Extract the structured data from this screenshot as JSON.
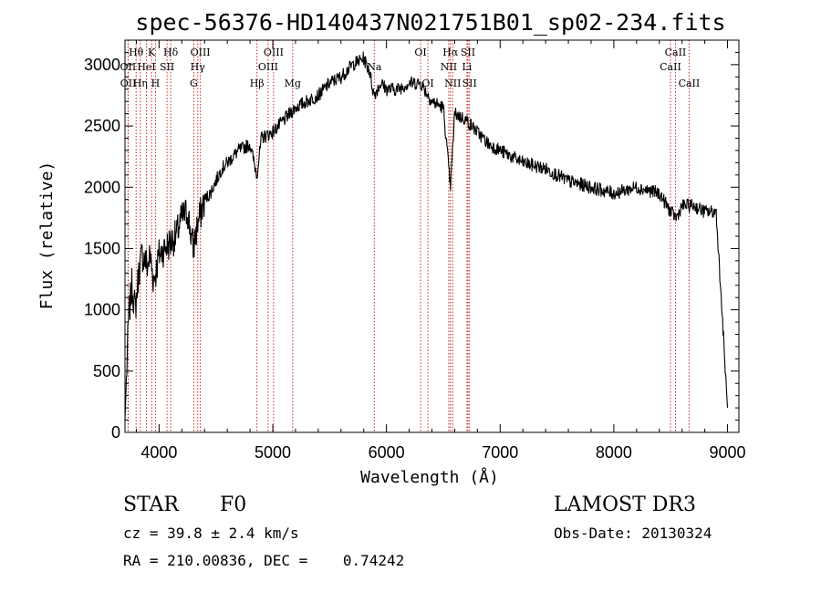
{
  "chart_data": {
    "type": "line",
    "title": "spec-56376-HD140437N021751B01_sp02-234.fits",
    "xlabel": "Wavelength (Å)",
    "ylabel": "Flux (relative)",
    "xlim": [
      3700,
      9100
    ],
    "ylim": [
      0,
      3200
    ],
    "xticks": [
      4000,
      5000,
      6000,
      7000,
      8000,
      9000
    ],
    "yticks": [
      0,
      500,
      1000,
      1500,
      2000,
      2500,
      3000
    ],
    "grid": false,
    "series": [
      {
        "name": "spectrum",
        "x": [
          3700,
          3730,
          3760,
          3790,
          3820,
          3850,
          3880,
          3900,
          3920,
          3950,
          3970,
          4000,
          4050,
          4100,
          4150,
          4200,
          4250,
          4300,
          4340,
          4400,
          4450,
          4500,
          4550,
          4600,
          4700,
          4800,
          4860,
          4900,
          5000,
          5100,
          5200,
          5300,
          5400,
          5500,
          5600,
          5700,
          5800,
          5850,
          5890,
          5950,
          6000,
          6100,
          6200,
          6300,
          6400,
          6500,
          6563,
          6600,
          6700,
          6800,
          6900,
          7000,
          7200,
          7400,
          7600,
          7800,
          8000,
          8200,
          8400,
          8500,
          8550,
          8600,
          8700,
          8800,
          8900,
          9000
        ],
        "y": [
          100,
          900,
          1200,
          1000,
          1300,
          1450,
          1400,
          1350,
          1450,
          1250,
          1300,
          1450,
          1500,
          1550,
          1600,
          1750,
          1800,
          1500,
          1700,
          1900,
          1950,
          2050,
          2150,
          2200,
          2300,
          2350,
          2100,
          2400,
          2450,
          2550,
          2650,
          2700,
          2750,
          2850,
          2900,
          3000,
          3050,
          2950,
          2750,
          2850,
          2800,
          2800,
          2850,
          2850,
          2700,
          2650,
          2000,
          2600,
          2550,
          2450,
          2350,
          2300,
          2200,
          2150,
          2050,
          2000,
          1950,
          2000,
          1950,
          1800,
          1750,
          1850,
          1850,
          1800,
          1800,
          200
        ]
      }
    ],
    "spectral_lines": [
      {
        "label": "Hθ",
        "wavelength": 3798,
        "row": 1
      },
      {
        "label": "OII",
        "wavelength": 3727,
        "row": 2
      },
      {
        "label": "OII",
        "wavelength": 3729,
        "row": 3
      },
      {
        "label": "K",
        "wavelength": 3934,
        "row": 1
      },
      {
        "label": "HeI",
        "wavelength": 3889,
        "row": 2
      },
      {
        "label": "Hη",
        "wavelength": 3835,
        "row": 3
      },
      {
        "label": "Hδ",
        "wavelength": 4102,
        "row": 1
      },
      {
        "label": "SII",
        "wavelength": 4070,
        "row": 2
      },
      {
        "label": "H",
        "wavelength": 3968,
        "row": 3
      },
      {
        "label": "OIII",
        "wavelength": 4363,
        "row": 1
      },
      {
        "label": "Hγ",
        "wavelength": 4340,
        "row": 2
      },
      {
        "label": "G",
        "wavelength": 4305,
        "row": 3
      },
      {
        "label": "Hβ",
        "wavelength": 4861,
        "row": 3
      },
      {
        "label": "OIII",
        "wavelength": 5007,
        "row": 1
      },
      {
        "label": "OIII",
        "wavelength": 4959,
        "row": 2
      },
      {
        "label": "Mg",
        "wavelength": 5175,
        "row": 3
      },
      {
        "label": "Na",
        "wavelength": 5893,
        "row": 2
      },
      {
        "label": "OI",
        "wavelength": 6300,
        "row": 1
      },
      {
        "label": "OI",
        "wavelength": 6364,
        "row": 3
      },
      {
        "label": "Hα",
        "wavelength": 6563,
        "row": 1
      },
      {
        "label": "NII",
        "wavelength": 6548,
        "row": 2
      },
      {
        "label": "NII",
        "wavelength": 6583,
        "row": 3
      },
      {
        "label": "SII",
        "wavelength": 6717,
        "row": 1
      },
      {
        "label": "Li",
        "wavelength": 6708,
        "row": 2
      },
      {
        "label": "SII",
        "wavelength": 6731,
        "row": 3
      },
      {
        "label": "CaII",
        "wavelength": 8542,
        "row": 1
      },
      {
        "label": "CaII",
        "wavelength": 8498,
        "row": 2
      },
      {
        "label": "CaII",
        "wavelength": 8662,
        "row": 3
      }
    ]
  },
  "info": {
    "star_class": "STAR",
    "subclass": "F0",
    "survey": "LAMOST DR3",
    "redshift": "cz = 39.8 ± 2.4 km/s",
    "obs_date": "Obs-Date: 20130324",
    "coordinates": "RA = 210.00836, DEC =    0.74242"
  }
}
